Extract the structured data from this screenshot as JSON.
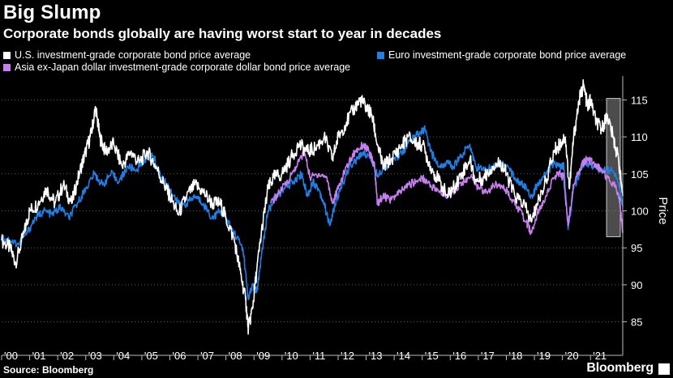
{
  "header": {
    "title": "Big Slump",
    "subtitle": "Corporate bonds globally are having worst start to year in decades"
  },
  "footer": {
    "source": "Source: Bloomberg",
    "brand": "Bloomberg"
  },
  "colors": {
    "background": "#000000",
    "us": "#ffffff",
    "euro": "#1f7fe6",
    "asia": "#c77ef0",
    "highlight_box": "#8a8a8a",
    "grid": "#555555"
  },
  "chart_data": {
    "type": "line",
    "title": "Big Slump",
    "subtitle": "Corporate bonds globally are having worst start to year in decades",
    "xlabel": "",
    "ylabel": "Price",
    "x_tick_labels": [
      "'00",
      "'01",
      "'02",
      "'03",
      "'04",
      "'05",
      "'06",
      "'07",
      "'08",
      "'09",
      "'10",
      "'11",
      "'12",
      "'13",
      "'14",
      "'15",
      "'16",
      "'17",
      "'18",
      "'19",
      "'20",
      "'21"
    ],
    "xlim": [
      2000.0,
      2022.15
    ],
    "ylim": [
      82,
      118
    ],
    "y_ticks": [
      85,
      90,
      95,
      100,
      105,
      110,
      115
    ],
    "grid": "horizontal-dotted",
    "y_axis_side": "right",
    "legend_position": "top-left",
    "highlight": {
      "x": [
        2021.95,
        2022.15
      ],
      "y": [
        96.5,
        115.2
      ]
    },
    "series": [
      {
        "name": "U.S. investment-grade corporate bond price average",
        "color": "#ffffff",
        "points": [
          [
            2000.0,
            96.0
          ],
          [
            2000.3,
            95.0
          ],
          [
            2000.5,
            93.0
          ],
          [
            2000.8,
            97.0
          ],
          [
            2001.0,
            100.0
          ],
          [
            2001.3,
            101.0
          ],
          [
            2001.6,
            103.0
          ],
          [
            2001.9,
            101.0
          ],
          [
            2002.2,
            103.5
          ],
          [
            2002.5,
            101.0
          ],
          [
            2002.8,
            105.5
          ],
          [
            2003.0,
            108.0
          ],
          [
            2003.2,
            110.5
          ],
          [
            2003.35,
            114.0
          ],
          [
            2003.5,
            110.0
          ],
          [
            2003.7,
            108.0
          ],
          [
            2004.0,
            109.0
          ],
          [
            2004.3,
            106.0
          ],
          [
            2004.6,
            108.0
          ],
          [
            2004.9,
            106.5
          ],
          [
            2005.2,
            108.0
          ],
          [
            2005.5,
            106.0
          ],
          [
            2005.8,
            103.5
          ],
          [
            2006.0,
            102.0
          ],
          [
            2006.3,
            99.5
          ],
          [
            2006.6,
            102.0
          ],
          [
            2006.9,
            103.5
          ],
          [
            2007.2,
            102.5
          ],
          [
            2007.5,
            101.0
          ],
          [
            2007.8,
            101.0
          ],
          [
            2008.0,
            99.0
          ],
          [
            2008.3,
            96.0
          ],
          [
            2008.5,
            92.0
          ],
          [
            2008.7,
            88.0
          ],
          [
            2008.8,
            84.0
          ],
          [
            2008.95,
            87.0
          ],
          [
            2009.1,
            92.0
          ],
          [
            2009.3,
            98.0
          ],
          [
            2009.5,
            103.0
          ],
          [
            2009.7,
            104.5
          ],
          [
            2010.0,
            105.0
          ],
          [
            2010.3,
            107.0
          ],
          [
            2010.6,
            109.0
          ],
          [
            2010.9,
            108.0
          ],
          [
            2011.2,
            108.5
          ],
          [
            2011.5,
            110.0
          ],
          [
            2011.8,
            107.0
          ],
          [
            2012.0,
            110.0
          ],
          [
            2012.3,
            112.0
          ],
          [
            2012.6,
            114.0
          ],
          [
            2012.8,
            115.0
          ],
          [
            2013.0,
            114.0
          ],
          [
            2013.2,
            113.0
          ],
          [
            2013.4,
            109.0
          ],
          [
            2013.6,
            106.0
          ],
          [
            2013.9,
            107.0
          ],
          [
            2014.2,
            108.5
          ],
          [
            2014.5,
            110.0
          ],
          [
            2014.8,
            109.0
          ],
          [
            2015.0,
            109.0
          ],
          [
            2015.3,
            106.0
          ],
          [
            2015.6,
            104.0
          ],
          [
            2015.9,
            102.0
          ],
          [
            2016.1,
            103.0
          ],
          [
            2016.4,
            105.0
          ],
          [
            2016.7,
            107.0
          ],
          [
            2016.9,
            104.0
          ],
          [
            2017.2,
            104.5
          ],
          [
            2017.5,
            106.0
          ],
          [
            2017.8,
            106.5
          ],
          [
            2018.0,
            105.0
          ],
          [
            2018.3,
            102.0
          ],
          [
            2018.6,
            101.0
          ],
          [
            2018.9,
            98.5
          ],
          [
            2019.1,
            101.0
          ],
          [
            2019.4,
            104.0
          ],
          [
            2019.7,
            108.0
          ],
          [
            2019.9,
            109.0
          ],
          [
            2020.1,
            110.0
          ],
          [
            2020.25,
            103.0
          ],
          [
            2020.4,
            110.0
          ],
          [
            2020.6,
            115.0
          ],
          [
            2020.75,
            117.0
          ],
          [
            2020.9,
            114.0
          ],
          [
            2021.0,
            115.0
          ],
          [
            2021.2,
            112.0
          ],
          [
            2021.4,
            111.0
          ],
          [
            2021.6,
            113.0
          ],
          [
            2021.8,
            110.0
          ],
          [
            2022.0,
            107.0
          ],
          [
            2022.15,
            102.0
          ]
        ]
      },
      {
        "name": "Euro investment-grade corporate bond price average",
        "color": "#1f7fe6",
        "points": [
          [
            2000.0,
            96.5
          ],
          [
            2000.3,
            96.0
          ],
          [
            2000.6,
            95.5
          ],
          [
            2000.9,
            97.0
          ],
          [
            2001.2,
            99.0
          ],
          [
            2001.5,
            100.0
          ],
          [
            2001.8,
            99.5
          ],
          [
            2002.1,
            100.5
          ],
          [
            2002.4,
            99.0
          ],
          [
            2002.7,
            101.0
          ],
          [
            2003.0,
            103.0
          ],
          [
            2003.3,
            105.0
          ],
          [
            2003.6,
            103.5
          ],
          [
            2003.9,
            105.0
          ],
          [
            2004.2,
            104.0
          ],
          [
            2004.5,
            106.0
          ],
          [
            2004.8,
            105.5
          ],
          [
            2005.1,
            107.0
          ],
          [
            2005.4,
            107.5
          ],
          [
            2005.7,
            104.5
          ],
          [
            2006.0,
            103.0
          ],
          [
            2006.3,
            101.0
          ],
          [
            2006.6,
            101.0
          ],
          [
            2006.9,
            102.0
          ],
          [
            2007.2,
            101.0
          ],
          [
            2007.5,
            99.0
          ],
          [
            2007.8,
            100.0
          ],
          [
            2008.0,
            99.0
          ],
          [
            2008.3,
            97.0
          ],
          [
            2008.6,
            95.0
          ],
          [
            2008.8,
            88.0
          ],
          [
            2008.95,
            90.0
          ],
          [
            2009.1,
            89.0
          ],
          [
            2009.3,
            95.0
          ],
          [
            2009.5,
            100.0
          ],
          [
            2009.8,
            102.0
          ],
          [
            2010.1,
            103.0
          ],
          [
            2010.4,
            104.0
          ],
          [
            2010.7,
            105.0
          ],
          [
            2010.9,
            102.0
          ],
          [
            2011.1,
            104.0
          ],
          [
            2011.3,
            103.0
          ],
          [
            2011.5,
            101.0
          ],
          [
            2011.7,
            98.0
          ],
          [
            2011.9,
            101.0
          ],
          [
            2012.1,
            103.0
          ],
          [
            2012.4,
            106.0
          ],
          [
            2012.7,
            107.0
          ],
          [
            2012.9,
            108.0
          ],
          [
            2013.2,
            107.0
          ],
          [
            2013.4,
            105.0
          ],
          [
            2013.7,
            106.0
          ],
          [
            2014.0,
            107.0
          ],
          [
            2014.3,
            108.0
          ],
          [
            2014.6,
            109.5
          ],
          [
            2014.9,
            110.5
          ],
          [
            2015.1,
            111.0
          ],
          [
            2015.3,
            108.0
          ],
          [
            2015.6,
            106.0
          ],
          [
            2015.9,
            106.5
          ],
          [
            2016.1,
            106.0
          ],
          [
            2016.4,
            107.5
          ],
          [
            2016.7,
            109.0
          ],
          [
            2016.9,
            106.0
          ],
          [
            2017.2,
            105.5
          ],
          [
            2017.5,
            106.0
          ],
          [
            2017.8,
            106.5
          ],
          [
            2018.0,
            106.0
          ],
          [
            2018.3,
            104.5
          ],
          [
            2018.6,
            103.5
          ],
          [
            2018.9,
            102.0
          ],
          [
            2019.1,
            103.5
          ],
          [
            2019.4,
            105.0
          ],
          [
            2019.7,
            106.5
          ],
          [
            2019.9,
            106.0
          ],
          [
            2020.05,
            106.0
          ],
          [
            2020.2,
            97.5
          ],
          [
            2020.4,
            103.0
          ],
          [
            2020.7,
            106.0
          ],
          [
            2020.9,
            106.5
          ],
          [
            2021.1,
            106.0
          ],
          [
            2021.4,
            105.5
          ],
          [
            2021.7,
            105.5
          ],
          [
            2021.9,
            105.0
          ],
          [
            2022.05,
            103.0
          ],
          [
            2022.15,
            100.5
          ]
        ]
      },
      {
        "name": "Asia ex-Japan dollar investment-grade corporate dollar bond price average",
        "color": "#c77ef0",
        "points": [
          [
            2009.6,
            101.0
          ],
          [
            2009.9,
            102.5
          ],
          [
            2010.2,
            104.0
          ],
          [
            2010.5,
            106.0
          ],
          [
            2010.8,
            108.0
          ],
          [
            2011.0,
            104.5
          ],
          [
            2011.3,
            105.0
          ],
          [
            2011.6,
            104.5
          ],
          [
            2011.8,
            101.0
          ],
          [
            2012.0,
            103.0
          ],
          [
            2012.3,
            106.0
          ],
          [
            2012.6,
            108.0
          ],
          [
            2012.9,
            109.0
          ],
          [
            2013.1,
            108.0
          ],
          [
            2013.3,
            106.0
          ],
          [
            2013.4,
            101.0
          ],
          [
            2013.6,
            102.0
          ],
          [
            2013.9,
            101.5
          ],
          [
            2014.2,
            102.5
          ],
          [
            2014.5,
            103.5
          ],
          [
            2014.8,
            104.0
          ],
          [
            2015.0,
            104.5
          ],
          [
            2015.3,
            103.5
          ],
          [
            2015.6,
            102.5
          ],
          [
            2015.9,
            102.0
          ],
          [
            2016.2,
            103.0
          ],
          [
            2016.5,
            104.0
          ],
          [
            2016.8,
            104.5
          ],
          [
            2017.0,
            103.0
          ],
          [
            2017.3,
            102.5
          ],
          [
            2017.6,
            103.5
          ],
          [
            2017.9,
            103.5
          ],
          [
            2018.1,
            102.0
          ],
          [
            2018.4,
            100.5
          ],
          [
            2018.7,
            98.5
          ],
          [
            2018.9,
            97.0
          ],
          [
            2019.1,
            99.5
          ],
          [
            2019.4,
            102.0
          ],
          [
            2019.7,
            104.5
          ],
          [
            2019.9,
            105.0
          ],
          [
            2020.05,
            104.5
          ],
          [
            2020.2,
            98.0
          ],
          [
            2020.4,
            103.5
          ],
          [
            2020.7,
            106.5
          ],
          [
            2020.9,
            107.0
          ],
          [
            2021.1,
            106.5
          ],
          [
            2021.4,
            105.5
          ],
          [
            2021.7,
            104.0
          ],
          [
            2021.9,
            103.5
          ],
          [
            2022.05,
            101.0
          ],
          [
            2022.15,
            97.0
          ]
        ]
      }
    ]
  }
}
